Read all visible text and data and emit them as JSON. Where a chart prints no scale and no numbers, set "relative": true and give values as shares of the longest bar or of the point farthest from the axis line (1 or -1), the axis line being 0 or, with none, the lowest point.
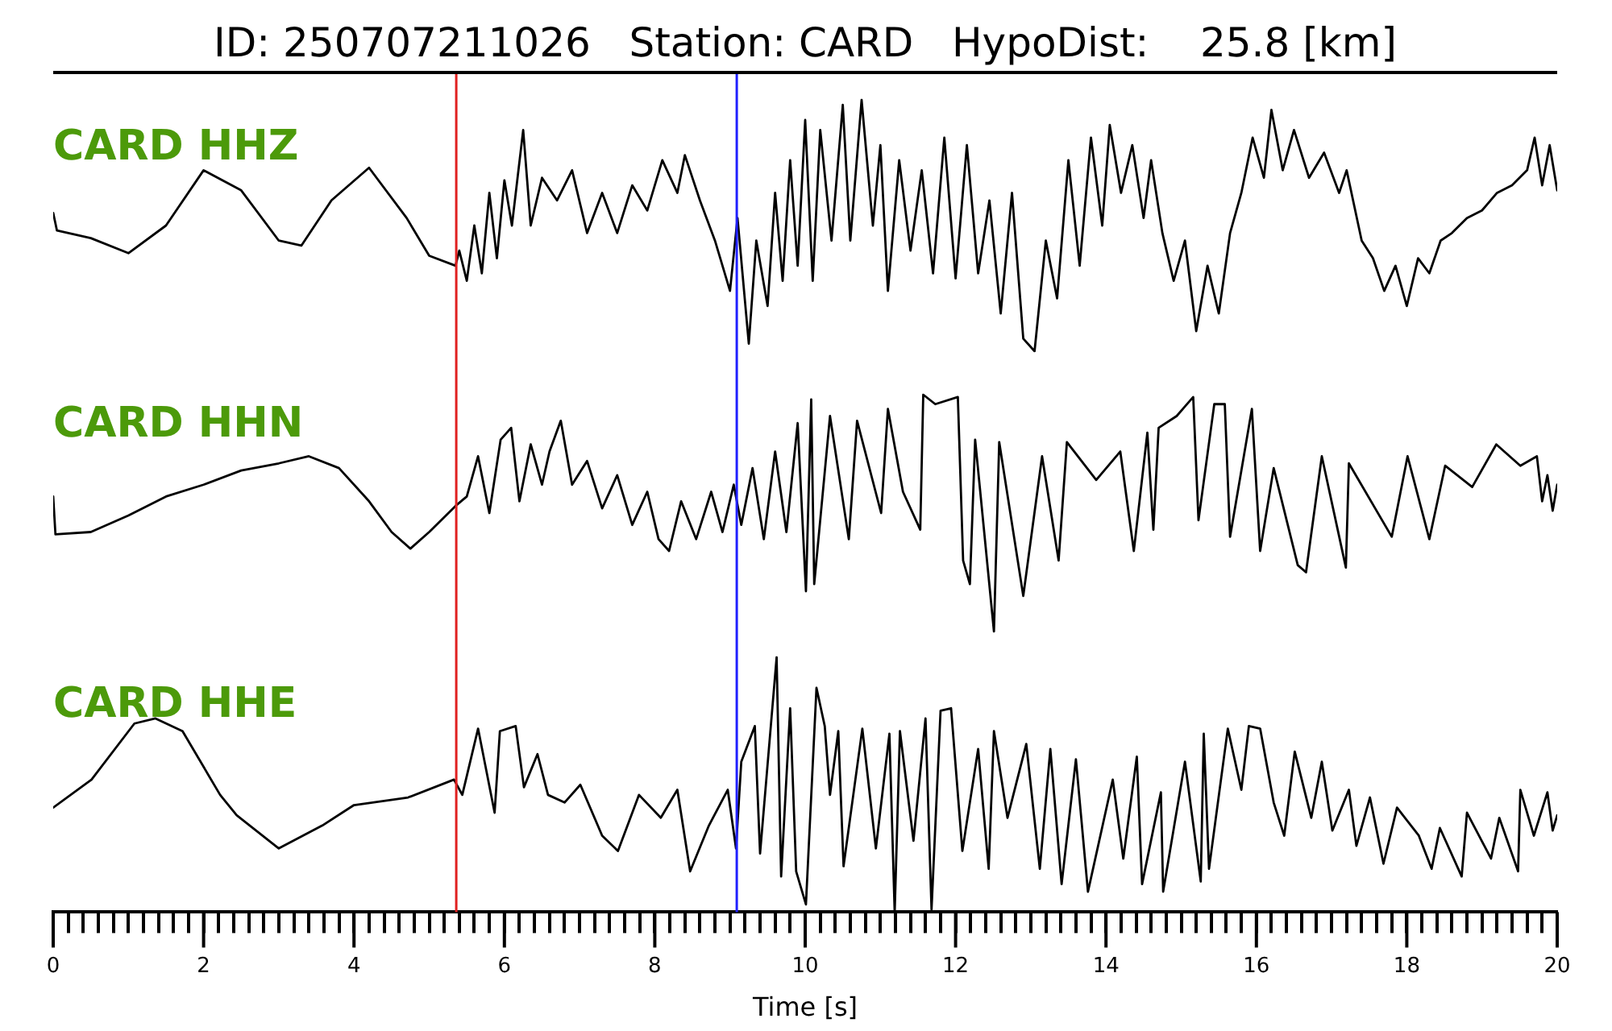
{
  "chart_data": [
    {
      "type": "line",
      "title": "ID: 250707211026   Station: CARD   HypoDist:    25.8 [km]",
      "relative": true,
      "marker": "none",
      "grid": false,
      "tick_labels": false,
      "xlim": [
        0,
        20
      ],
      "ref_lines": [
        {
          "axis": "x",
          "value": 5.36,
          "color": "#e02020"
        },
        {
          "axis": "x",
          "value": 9.09,
          "color": "#2020ff"
        }
      ],
      "x": [
        0,
        0.05,
        0.5,
        1.0,
        1.5,
        2.0,
        2.5,
        3.0,
        3.3,
        3.7,
        4.2,
        4.7,
        5.0,
        5.35,
        5.4,
        5.5,
        5.6,
        5.7,
        5.8,
        5.9,
        6.0,
        6.1,
        6.25,
        6.35,
        6.5,
        6.7,
        6.9,
        7.1,
        7.3,
        7.5,
        7.7,
        7.9,
        8.1,
        8.3,
        8.4,
        8.6,
        8.8,
        9.0,
        9.1,
        9.25,
        9.35,
        9.5,
        9.6,
        9.7,
        9.8,
        9.9,
        10.0,
        10.1,
        10.2,
        10.35,
        10.5,
        10.6,
        10.75,
        10.9,
        11.0,
        11.1,
        11.25,
        11.4,
        11.55,
        11.7,
        11.85,
        12.0,
        12.15,
        12.3,
        12.45,
        12.6,
        12.75,
        12.9,
        13.05,
        13.2,
        13.35,
        13.5,
        13.65,
        13.8,
        13.95,
        14.05,
        14.2,
        14.35,
        14.5,
        14.6,
        14.75,
        14.9,
        15.05,
        15.2,
        15.35,
        15.5,
        15.65,
        15.8,
        15.95,
        16.1,
        16.2,
        16.35,
        16.5,
        16.7,
        16.9,
        17.1,
        17.2,
        17.4,
        17.55,
        17.7,
        17.85,
        18.0,
        18.15,
        18.3,
        18.45,
        18.6,
        18.8,
        19.0,
        19.2,
        19.4,
        19.6,
        19.7,
        19.8,
        19.9,
        20.0
      ],
      "series": [
        {
          "name": "CARD HHZ",
          "color": "#000000",
          "values": [
            0.55,
            0.48,
            0.45,
            0.39,
            0.5,
            0.72,
            0.64,
            0.44,
            0.42,
            0.6,
            0.73,
            0.53,
            0.38,
            0.34,
            0.4,
            0.28,
            0.5,
            0.31,
            0.63,
            0.37,
            0.68,
            0.5,
            0.88,
            0.5,
            0.69,
            0.6,
            0.72,
            0.47,
            0.63,
            0.47,
            0.66,
            0.56,
            0.76,
            0.63,
            0.78,
            0.6,
            0.44,
            0.24,
            0.53,
            0.03,
            0.44,
            0.18,
            0.63,
            0.28,
            0.76,
            0.34,
            0.92,
            0.28,
            0.88,
            0.44,
            0.98,
            0.44,
            1,
            0.5,
            0.82,
            0.24,
            0.76,
            0.4,
            0.72,
            0.31,
            0.85,
            0.29,
            0.82,
            0.31,
            0.6,
            0.15,
            0.63,
            0.05,
            0,
            0.44,
            0.21,
            0.76,
            0.34,
            0.85,
            0.5,
            0.9,
            0.63,
            0.82,
            0.53,
            0.76,
            0.47,
            0.28,
            0.44,
            0.08,
            0.34,
            0.15,
            0.47,
            0.63,
            0.85,
            0.69,
            0.96,
            0.72,
            0.88,
            0.69,
            0.79,
            0.63,
            0.72,
            0.44,
            0.37,
            0.24,
            0.34,
            0.18,
            0.37,
            0.31,
            0.44,
            0.47,
            0.53,
            0.56,
            0.63,
            0.66,
            0.72,
            0.85,
            0.66,
            0.82,
            0.64
          ]
        }
      ]
    },
    {
      "type": "line",
      "relative": true,
      "marker": "none",
      "grid": false,
      "tick_labels": false,
      "xlim": [
        0,
        20
      ],
      "ref_lines": [
        {
          "axis": "x",
          "value": 5.36,
          "color": "#e02020"
        },
        {
          "axis": "x",
          "value": 9.09,
          "color": "#2020ff"
        }
      ],
      "x": [
        0,
        0.03,
        0.5,
        1.0,
        1.5,
        2.0,
        2.5,
        3.0,
        3.4,
        3.8,
        4.2,
        4.5,
        4.75,
        5.0,
        5.35,
        5.5,
        5.65,
        5.8,
        5.95,
        6.09,
        6.2,
        6.35,
        6.5,
        6.6,
        6.75,
        6.9,
        7.1,
        7.3,
        7.5,
        7.7,
        7.9,
        8.05,
        8.19,
        8.35,
        8.55,
        8.75,
        8.9,
        9.05,
        9.15,
        9.3,
        9.45,
        9.6,
        9.75,
        9.9,
        10.01,
        10.08,
        10.12,
        10.33,
        10.58,
        10.69,
        11.01,
        11.1,
        11.3,
        11.53,
        11.57,
        11.73,
        12.03,
        12.1,
        12.19,
        12.26,
        12.51,
        12.58,
        12.9,
        13.15,
        13.37,
        13.48,
        13.87,
        14.19,
        14.37,
        14.55,
        14.63,
        14.7,
        14.94,
        15.05,
        15.16,
        15.23,
        15.44,
        15.58,
        15.65,
        15.94,
        16.05,
        16.23,
        16.55,
        16.66,
        16.87,
        17.19,
        17.23,
        17.8,
        18.01,
        18.3,
        18.51,
        18.87,
        19.19,
        19.51,
        19.73,
        19.8,
        19.87,
        19.94,
        20.0
      ],
      "series": [
        {
          "name": "CARD HHN",
          "color": "#000000",
          "values": [
            0.57,
            0.41,
            0.42,
            0.49,
            0.57,
            0.62,
            0.68,
            0.71,
            0.74,
            0.69,
            0.55,
            0.42,
            0.35,
            0.42,
            0.53,
            0.57,
            0.74,
            0.5,
            0.81,
            0.86,
            0.55,
            0.79,
            0.62,
            0.76,
            0.89,
            0.62,
            0.72,
            0.52,
            0.66,
            0.45,
            0.59,
            0.39,
            0.34,
            0.55,
            0.39,
            0.59,
            0.42,
            0.62,
            0.45,
            0.69,
            0.39,
            0.76,
            0.42,
            0.88,
            0.17,
            0.98,
            0.2,
            0.91,
            0.39,
            0.89,
            0.5,
            0.94,
            0.59,
            0.43,
            1,
            0.96,
            0.99,
            0.3,
            0.2,
            0.81,
            0,
            0.8,
            0.15,
            0.74,
            0.3,
            0.8,
            0.64,
            0.76,
            0.34,
            0.84,
            0.43,
            0.86,
            0.91,
            0.95,
            0.99,
            0.47,
            0.96,
            0.96,
            0.4,
            0.94,
            0.34,
            0.69,
            0.28,
            0.25,
            0.74,
            0.27,
            0.71,
            0.4,
            0.74,
            0.39,
            0.7,
            0.61,
            0.79,
            0.7,
            0.74,
            0.55,
            0.66,
            0.51,
            0.62
          ]
        }
      ]
    },
    {
      "type": "line",
      "relative": true,
      "marker": "none",
      "grid": false,
      "tick_labels": "x",
      "xlabel": "Time [s]",
      "xlim": [
        0,
        20
      ],
      "xticks": [
        0,
        {
          "value": 0.2,
          "label": null
        },
        {
          "value": 0.4,
          "label": null
        },
        {
          "value": 0.6,
          "label": null
        },
        {
          "value": 0.8,
          "label": null
        },
        {
          "value": 1,
          "label": null
        },
        {
          "value": 1.2,
          "label": null
        },
        {
          "value": 1.4,
          "label": null
        },
        {
          "value": 1.6,
          "label": null
        },
        {
          "value": 1.8,
          "label": null
        },
        2,
        {
          "value": 2.2,
          "label": null
        },
        {
          "value": 2.4,
          "label": null
        },
        {
          "value": 2.6,
          "label": null
        },
        {
          "value": 2.8,
          "label": null
        },
        {
          "value": 3,
          "label": null
        },
        {
          "value": 3.2,
          "label": null
        },
        {
          "value": 3.4,
          "label": null
        },
        {
          "value": 3.6,
          "label": null
        },
        {
          "value": 3.8,
          "label": null
        },
        4,
        {
          "value": 4.2,
          "label": null
        },
        {
          "value": 4.4,
          "label": null
        },
        {
          "value": 4.6,
          "label": null
        },
        {
          "value": 4.8,
          "label": null
        },
        {
          "value": 5,
          "label": null
        },
        {
          "value": 5.2,
          "label": null
        },
        {
          "value": 5.4,
          "label": null
        },
        {
          "value": 5.6,
          "label": null
        },
        {
          "value": 5.8,
          "label": null
        },
        6,
        {
          "value": 6.2,
          "label": null
        },
        {
          "value": 6.4,
          "label": null
        },
        {
          "value": 6.6,
          "label": null
        },
        {
          "value": 6.8,
          "label": null
        },
        {
          "value": 7,
          "label": null
        },
        {
          "value": 7.2,
          "label": null
        },
        {
          "value": 7.4,
          "label": null
        },
        {
          "value": 7.6,
          "label": null
        },
        {
          "value": 7.8,
          "label": null
        },
        8,
        {
          "value": 8.2,
          "label": null
        },
        {
          "value": 8.4,
          "label": null
        },
        {
          "value": 8.6,
          "label": null
        },
        {
          "value": 8.8,
          "label": null
        },
        {
          "value": 9,
          "label": null
        },
        {
          "value": 9.2,
          "label": null
        },
        {
          "value": 9.4,
          "label": null
        },
        {
          "value": 9.6,
          "label": null
        },
        {
          "value": 9.8,
          "label": null
        },
        10,
        {
          "value": 10.2,
          "label": null
        },
        {
          "value": 10.4,
          "label": null
        },
        {
          "value": 10.6,
          "label": null
        },
        {
          "value": 10.8,
          "label": null
        },
        {
          "value": 11,
          "label": null
        },
        {
          "value": 11.2,
          "label": null
        },
        {
          "value": 11.4,
          "label": null
        },
        {
          "value": 11.6,
          "label": null
        },
        {
          "value": 11.8,
          "label": null
        },
        12,
        {
          "value": 12.2,
          "label": null
        },
        {
          "value": 12.4,
          "label": null
        },
        {
          "value": 12.6,
          "label": null
        },
        {
          "value": 12.8,
          "label": null
        },
        {
          "value": 13,
          "label": null
        },
        {
          "value": 13.2,
          "label": null
        },
        {
          "value": 13.4,
          "label": null
        },
        {
          "value": 13.6,
          "label": null
        },
        {
          "value": 13.8,
          "label": null
        },
        14,
        {
          "value": 14.2,
          "label": null
        },
        {
          "value": 14.4,
          "label": null
        },
        {
          "value": 14.6,
          "label": null
        },
        {
          "value": 14.8,
          "label": null
        },
        {
          "value": 15,
          "label": null
        },
        {
          "value": 15.2,
          "label": null
        },
        {
          "value": 15.4,
          "label": null
        },
        {
          "value": 15.6,
          "label": null
        },
        {
          "value": 15.8,
          "label": null
        },
        16,
        {
          "value": 16.2,
          "label": null
        },
        {
          "value": 16.4,
          "label": null
        },
        {
          "value": 16.6,
          "label": null
        },
        {
          "value": 16.8,
          "label": null
        },
        {
          "value": 17,
          "label": null
        },
        {
          "value": 17.2,
          "label": null
        },
        {
          "value": 17.4,
          "label": null
        },
        {
          "value": 17.6,
          "label": null
        },
        {
          "value": 17.8,
          "label": null
        },
        18,
        {
          "value": 18.2,
          "label": null
        },
        {
          "value": 18.4,
          "label": null
        },
        {
          "value": 18.6,
          "label": null
        },
        {
          "value": 18.8,
          "label": null
        },
        {
          "value": 19,
          "label": null
        },
        {
          "value": 19.2,
          "label": null
        },
        {
          "value": 19.4,
          "label": null
        },
        {
          "value": 19.6,
          "label": null
        },
        {
          "value": 19.8,
          "label": null
        },
        20
      ],
      "ref_lines": [
        {
          "axis": "x",
          "value": 5.36,
          "color": "#e02020"
        },
        {
          "axis": "x",
          "value": 9.09,
          "color": "#2020ff"
        }
      ],
      "x": [
        0,
        0.51,
        1.08,
        1.36,
        1.72,
        2.22,
        2.44,
        3.0,
        3.58,
        4.0,
        4.72,
        5.33,
        5.44,
        5.65,
        5.87,
        5.94,
        6.15,
        6.26,
        6.44,
        6.58,
        6.8,
        7.01,
        7.3,
        7.51,
        7.79,
        8.08,
        8.3,
        8.47,
        8.72,
        8.97,
        9.08,
        9.15,
        9.33,
        9.4,
        9.62,
        9.68,
        9.8,
        9.88,
        10.01,
        10.15,
        10.26,
        10.33,
        10.44,
        10.51,
        10.76,
        10.94,
        11.12,
        11.19,
        11.26,
        11.44,
        11.6,
        11.68,
        11.8,
        11.94,
        12.09,
        12.3,
        12.44,
        12.51,
        12.69,
        12.94,
        13.12,
        13.26,
        13.41,
        13.6,
        13.76,
        14.09,
        14.23,
        14.41,
        14.48,
        14.73,
        14.76,
        15.05,
        15.26,
        15.3,
        15.37,
        15.62,
        15.8,
        15.9,
        16.05,
        16.23,
        16.37,
        16.51,
        16.73,
        16.87,
        17.01,
        17.23,
        17.33,
        17.51,
        17.69,
        17.87,
        18.16,
        18.33,
        18.44,
        18.73,
        18.8,
        19.12,
        19.23,
        19.48,
        19.51,
        19.69,
        19.87,
        19.94,
        20.0
      ],
      "series": [
        {
          "name": "CARD HHE",
          "color": "#000000",
          "values": [
            0.41,
            0.52,
            0.74,
            0.76,
            0.71,
            0.46,
            0.38,
            0.25,
            0.34,
            0.42,
            0.45,
            0.52,
            0.46,
            0.72,
            0.39,
            0.71,
            0.73,
            0.49,
            0.62,
            0.46,
            0.43,
            0.5,
            0.3,
            0.24,
            0.46,
            0.37,
            0.48,
            0.16,
            0.34,
            0.48,
            0.25,
            0.59,
            0.73,
            0.23,
            1,
            0.14,
            0.8,
            0.16,
            0.03,
            0.88,
            0.73,
            0.46,
            0.71,
            0.18,
            0.72,
            0.25,
            0.7,
            0,
            0.71,
            0.28,
            0.76,
            0.01,
            0.79,
            0.8,
            0.24,
            0.64,
            0.17,
            0.71,
            0.37,
            0.66,
            0.17,
            0.64,
            0.11,
            0.6,
            0.08,
            0.52,
            0.21,
            0.61,
            0.11,
            0.47,
            0.08,
            0.59,
            0.12,
            0.7,
            0.17,
            0.72,
            0.48,
            0.73,
            0.72,
            0.43,
            0.3,
            0.63,
            0.37,
            0.59,
            0.32,
            0.48,
            0.26,
            0.45,
            0.19,
            0.41,
            0.3,
            0.17,
            0.33,
            0.14,
            0.39,
            0.21,
            0.37,
            0.16,
            0.48,
            0.3,
            0.47,
            0.32,
            0.38
          ]
        }
      ]
    }
  ]
}
